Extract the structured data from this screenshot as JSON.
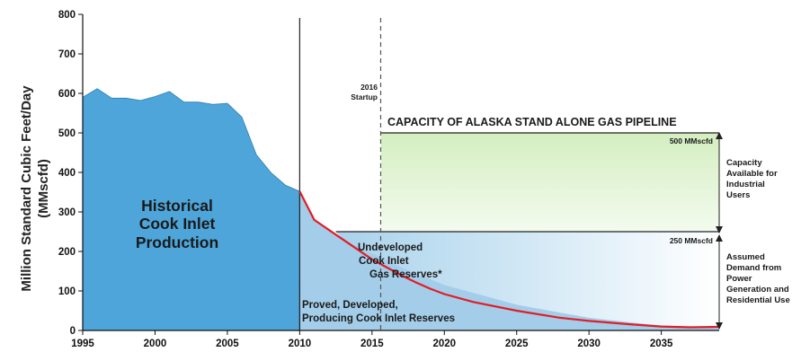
{
  "chart_data": {
    "type": "area",
    "title": "",
    "xlabel": "",
    "ylabel": "Million Standard Cubic Feet/Day (MMscfd)",
    "ylabel_lines": [
      "Million Standard Cubic Feet/Day",
      "(MMscfd)"
    ],
    "xlim": [
      1995,
      2039
    ],
    "ylim": [
      0,
      800
    ],
    "x_ticks": [
      1995,
      2000,
      2005,
      2010,
      2015,
      2020,
      2025,
      2030,
      2035
    ],
    "y_ticks": [
      0,
      100,
      200,
      300,
      400,
      500,
      600,
      700,
      800
    ],
    "colors": {
      "historical": "#4ea5d9",
      "proved": "#a3cde9",
      "undeveloped_start": "#b9daee",
      "capacity_green": "#daf0c8",
      "forecast_line": "#e01e26",
      "axis": "#111111"
    },
    "series": [
      {
        "name": "Historical Cook Inlet Production",
        "x": [
          1995,
          1996,
          1997,
          1998,
          1999,
          2000,
          2001,
          2002,
          2003,
          2004,
          2005,
          2006,
          2007,
          2008,
          2009,
          2010
        ],
        "y": [
          590,
          612,
          588,
          588,
          582,
          592,
          605,
          578,
          578,
          572,
          575,
          540,
          445,
          400,
          368,
          352
        ]
      },
      {
        "name": "Proved, Developed, Producing Cook Inlet Reserves",
        "x": [
          2010,
          2011,
          2012,
          2013,
          2015,
          2017,
          2020,
          2025,
          2030,
          2035,
          2039
        ],
        "y": [
          352,
          282,
          255,
          230,
          195,
          160,
          115,
          65,
          32,
          12,
          6
        ]
      },
      {
        "name": "Undeveloped Cook Inlet Gas Reserves*",
        "x": [
          2010,
          2011,
          2012,
          2013,
          2014,
          2015,
          2016,
          2017,
          2018,
          2019,
          2020,
          2022,
          2025,
          2028,
          2030,
          2033,
          2035,
          2037,
          2039
        ],
        "y": [
          352,
          280,
          255,
          230,
          205,
          180,
          160,
          140,
          122,
          106,
          92,
          72,
          50,
          32,
          24,
          15,
          10,
          8,
          9
        ]
      }
    ],
    "capacity": {
      "value": 500,
      "label": "500 MMscfd",
      "x_start": 2015.6,
      "x_end": 2039
    },
    "demand": {
      "value": 250,
      "label": "250 MMscfd",
      "x_start": 2012.5,
      "x_end": 2039
    },
    "vertical_lines": [
      {
        "x": 2010,
        "style": "solid"
      },
      {
        "x": 2015.6,
        "style": "dashed"
      }
    ],
    "annotations": {
      "historical": [
        "Historical",
        "Cook Inlet",
        "Production"
      ],
      "undeveloped": [
        "Undeveloped",
        "Cook Inlet",
        "Gas Reserves*"
      ],
      "proved": [
        "Proved, Developed,",
        "Producing Cook Inlet Reserves"
      ],
      "startup": [
        "2016",
        "Startup"
      ],
      "pipeline_title": "CAPACITY OF ALASKA STAND ALONE GAS PIPELINE",
      "capacity_side": [
        "Capacity",
        "Available for",
        "Industrial",
        "Users"
      ],
      "demand_side": [
        "Assumed",
        "Demand from",
        "Power",
        "Generation and",
        "Residential Use"
      ]
    },
    "grid": false,
    "legend": "none"
  }
}
